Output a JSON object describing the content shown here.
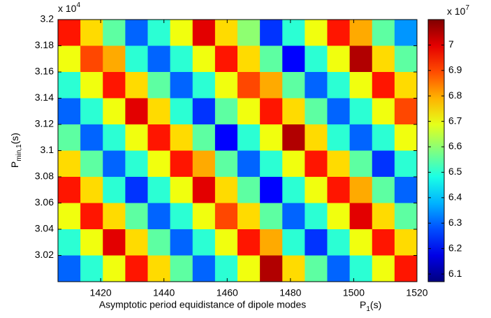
{
  "chart_data": {
    "type": "heatmap",
    "x_multiplier": {
      "base": "x 10",
      "exp": "4"
    },
    "xlabel": "Asymptotic period equidistance of dipole modes",
    "xunit": {
      "base": "P",
      "sub": "1",
      "suffix": "(s)"
    },
    "ylabel": {
      "base": "P",
      "sub": "min,1",
      "suffix": "(s)"
    },
    "xlim": [
      1406.5,
      1520
    ],
    "xticks": [
      1420,
      1440,
      1460,
      1480,
      1500,
      1520
    ],
    "ylim": [
      3.0,
      3.2
    ],
    "yticks": [
      3.02,
      3.04,
      3.06,
      3.08,
      3.1,
      3.12,
      3.14,
      3.16,
      3.18,
      3.2
    ],
    "colormap": "jet",
    "clim": [
      6.07,
      7.1
    ],
    "cticks": [
      6.1,
      6.2,
      6.3,
      6.4,
      6.5,
      6.6,
      6.7,
      6.8,
      6.9,
      7
    ],
    "c_multiplier": {
      "base": "x 10",
      "exp": "7"
    },
    "z": [
      [
        6.95,
        6.75,
        6.55,
        6.3,
        6.5,
        6.7,
        7.0,
        6.75,
        6.6,
        6.25,
        6.5,
        6.7,
        6.95,
        6.8,
        6.55,
        6.35
      ],
      [
        6.7,
        6.9,
        6.8,
        6.5,
        6.3,
        6.5,
        6.7,
        6.95,
        6.75,
        6.55,
        6.2,
        6.5,
        6.7,
        7.05,
        6.75,
        6.55
      ],
      [
        6.5,
        6.7,
        6.95,
        6.75,
        6.55,
        6.3,
        6.5,
        6.7,
        6.9,
        6.8,
        6.55,
        6.3,
        6.5,
        6.7,
        6.95,
        6.75
      ],
      [
        6.3,
        6.5,
        6.7,
        7.0,
        6.75,
        6.5,
        6.25,
        6.55,
        6.7,
        6.95,
        6.75,
        6.55,
        6.3,
        6.5,
        6.7,
        6.9
      ],
      [
        6.55,
        6.3,
        6.5,
        6.7,
        6.95,
        6.75,
        6.55,
        6.2,
        6.5,
        6.7,
        7.05,
        6.75,
        6.5,
        6.3,
        6.5,
        6.7
      ],
      [
        6.75,
        6.55,
        6.3,
        6.5,
        6.7,
        6.95,
        6.8,
        6.55,
        6.3,
        6.5,
        6.7,
        6.95,
        6.75,
        6.55,
        6.25,
        6.5
      ],
      [
        6.95,
        6.75,
        6.5,
        6.25,
        6.5,
        6.7,
        7.0,
        6.75,
        6.55,
        6.2,
        6.5,
        6.7,
        6.95,
        6.8,
        6.55,
        6.3
      ],
      [
        6.7,
        6.95,
        6.75,
        6.55,
        6.3,
        6.5,
        6.7,
        6.9,
        6.75,
        6.55,
        6.3,
        6.5,
        6.7,
        7.0,
        6.75,
        6.55
      ],
      [
        6.5,
        6.7,
        7.0,
        6.75,
        6.55,
        6.3,
        6.5,
        6.7,
        6.95,
        6.8,
        6.5,
        6.25,
        6.5,
        6.7,
        6.95,
        6.75
      ],
      [
        6.3,
        6.5,
        6.7,
        6.95,
        6.75,
        6.55,
        6.3,
        6.5,
        6.7,
        7.05,
        6.75,
        6.55,
        6.3,
        6.5,
        6.7,
        6.95
      ]
    ]
  }
}
